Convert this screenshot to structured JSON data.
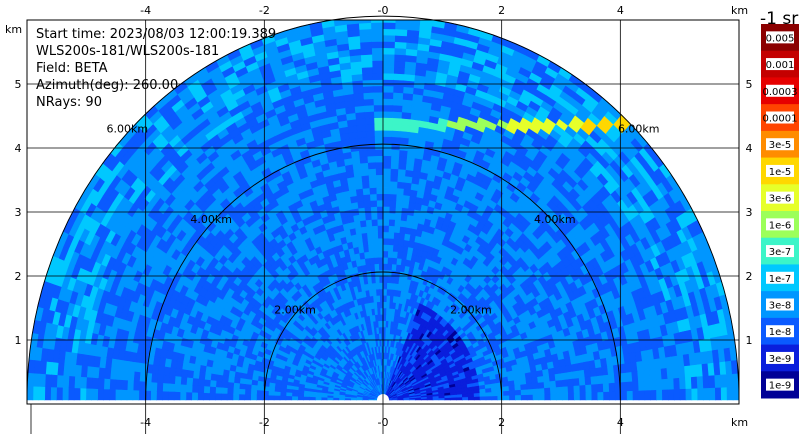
{
  "info": {
    "start_time": "Start time: 2023/08/03 12:00:19.389",
    "instrument": "WLS200s-181/WLS200s-181",
    "field": "Field: BETA",
    "azimuth": "Azimuth(deg): 260.00",
    "nrays": "NRays: 90"
  },
  "colorbar": {
    "unit_label": "-1 sr",
    "levels": [
      "0.005",
      "0.001",
      "0.0003",
      "0.0001",
      "3e-5",
      "1e-5",
      "3e-6",
      "1e-6",
      "3e-7",
      "1e-7",
      "3e-8",
      "1e-8",
      "3e-9",
      "1e-9"
    ],
    "colors": [
      "#8b0000",
      "#c40000",
      "#e60000",
      "#ff4400",
      "#ff8c00",
      "#ffd700",
      "#e6ff2a",
      "#9cff5a",
      "#3cf5c8",
      "#00c8ff",
      "#0096ff",
      "#0a5aff",
      "#0a1edc",
      "#000096"
    ]
  },
  "chart_data": {
    "type": "heatmap",
    "description_of_axes": "RHI scan, x = horizontal range, y = height",
    "xlabel": "km",
    "ylabel": "km",
    "xlim": [
      -6.0,
      6.0
    ],
    "ylim": [
      0.0,
      6.0
    ],
    "x_ticks": [
      -4,
      -2,
      0,
      2,
      4
    ],
    "x_tick_labels_top": [
      "-4",
      "-2",
      "-0",
      "2",
      "4"
    ],
    "x_tick_labels_bottom": [
      "-4",
      "-2",
      "-0",
      "2",
      "4"
    ],
    "y_ticks": [
      1,
      2,
      3,
      4,
      5
    ],
    "y_tick_labels": [
      "1",
      "2",
      "3",
      "4",
      "5"
    ],
    "range_rings_km": [
      2,
      4,
      6
    ],
    "range_ring_labels": [
      "2.00km",
      "4.00km",
      "6.00km"
    ],
    "max_range_km": 6.0,
    "grid": true,
    "colorscale": "log",
    "value_range": [
      1e-09,
      0.005
    ],
    "field": "BETA",
    "typical_value": "3e-8",
    "near_field_value": "1e-8",
    "aerosol_layer": {
      "height_km": 4.3,
      "x_range_km": [
        -0.1,
        4.4
      ],
      "values": [
        "3e-7",
        "1e-5",
        "3e-5"
      ]
    }
  }
}
